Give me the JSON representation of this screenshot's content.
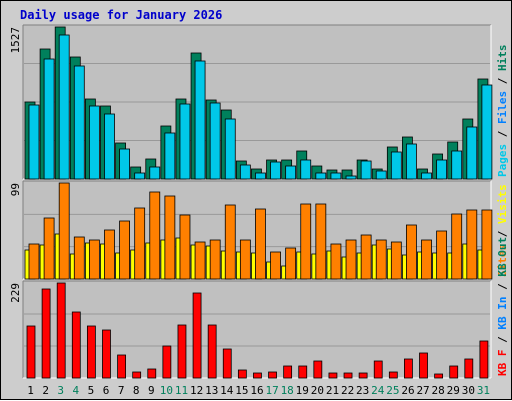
{
  "title": "Daily usage for January 2026",
  "colors": {
    "frame": "#cdcdcd",
    "plot_bg": "#c0c0c0",
    "grid": "#999999",
    "title_text": "#0000cc",
    "hits": "#00805c",
    "files": "#0080ff",
    "pages": "#00c8e8",
    "visits": "#ffff00",
    "sites": "#ff8000",
    "kb": "#ff0000",
    "weekend_day": "#00805c",
    "weekday": "#000000",
    "separator": "#000000"
  },
  "chart_data": [
    {
      "type": "bar",
      "name": "hits-files-pages",
      "ymax_label": "1527",
      "ylim": [
        0,
        1527
      ],
      "grid": true,
      "legend": [
        {
          "text": "Pages",
          "color": "#00c8e8"
        },
        {
          "text": "Files",
          "color": "#0080ff"
        },
        {
          "text": "Hits",
          "color": "#00805c"
        }
      ],
      "legend_separator": " / ",
      "x": [
        1,
        2,
        3,
        4,
        5,
        6,
        7,
        8,
        9,
        10,
        11,
        12,
        13,
        14,
        15,
        16,
        17,
        18,
        19,
        20,
        21,
        22,
        23,
        24,
        25,
        26,
        27,
        28,
        29,
        30,
        31
      ],
      "series": [
        {
          "name": "Hits",
          "color": "#00805c",
          "values": [
            770,
            1310,
            1527,
            1230,
            800,
            730,
            360,
            120,
            200,
            530,
            800,
            1265,
            790,
            690,
            180,
            100,
            190,
            190,
            280,
            130,
            90,
            90,
            190,
            100,
            320,
            420,
            100,
            250,
            370,
            600,
            1000
          ]
        },
        {
          "name": "Pages",
          "color": "#00c8e8",
          "values": [
            740,
            1210,
            1450,
            1140,
            730,
            650,
            300,
            60,
            120,
            460,
            750,
            1190,
            760,
            600,
            140,
            60,
            170,
            130,
            190,
            60,
            60,
            30,
            180,
            80,
            270,
            350,
            60,
            190,
            280,
            520,
            940
          ]
        }
      ]
    },
    {
      "type": "bar",
      "name": "visits-sites",
      "ymax_label": "99",
      "ylim": [
        0,
        99
      ],
      "grid": true,
      "legend": [
        {
          "text": "Sites",
          "color": "#ff8000"
        },
        {
          "text": "Visits",
          "color": "#ffff00"
        }
      ],
      "legend_separator": " / ",
      "x": [
        1,
        2,
        3,
        4,
        5,
        6,
        7,
        8,
        9,
        10,
        11,
        12,
        13,
        14,
        15,
        16,
        17,
        18,
        19,
        20,
        21,
        22,
        23,
        24,
        25,
        26,
        27,
        28,
        29,
        30,
        31
      ],
      "series": [
        {
          "name": "Visits",
          "color": "#ffff00",
          "values": [
            30,
            35,
            46,
            26,
            37,
            36,
            27,
            30,
            37,
            40,
            42,
            35,
            34,
            29,
            28,
            27,
            18,
            13,
            28,
            26,
            29,
            23,
            27,
            35,
            31,
            25,
            28,
            27,
            27,
            36,
            30
          ]
        },
        {
          "name": "Sites",
          "color": "#ff8000",
          "values": [
            36,
            63,
            99,
            43,
            40,
            51,
            60,
            73,
            90,
            86,
            66,
            38,
            40,
            76,
            40,
            72,
            28,
            32,
            77,
            77,
            36,
            40,
            45,
            40,
            38,
            56,
            40,
            50,
            67,
            71,
            71
          ]
        }
      ]
    },
    {
      "type": "bar",
      "name": "kbytes",
      "ymax_label": "229",
      "ylim": [
        0,
        229
      ],
      "grid": true,
      "legend": [
        {
          "text": "KB F",
          "color": "#ff0000"
        },
        {
          "text": "KB In",
          "color": "#0080ff"
        },
        {
          "text": "KB Out",
          "color": "#00805c"
        }
      ],
      "legend_separator": " / ",
      "x": [
        1,
        2,
        3,
        4,
        5,
        6,
        7,
        8,
        9,
        10,
        11,
        12,
        13,
        14,
        15,
        16,
        17,
        18,
        19,
        20,
        21,
        22,
        23,
        24,
        25,
        26,
        27,
        28,
        29,
        30,
        31
      ],
      "series": [
        {
          "name": "KB F",
          "color": "#ff0000",
          "values": [
            125,
            215,
            229,
            160,
            125,
            115,
            55,
            15,
            22,
            78,
            128,
            205,
            128,
            70,
            20,
            12,
            14,
            30,
            28,
            40,
            12,
            12,
            12,
            40,
            15,
            45,
            60,
            10,
            28,
            45,
            88
          ]
        }
      ]
    }
  ],
  "x_axis": {
    "labels": [
      "1",
      "2",
      "3",
      "4",
      "5",
      "6",
      "7",
      "8",
      "9",
      "10",
      "11",
      "12",
      "13",
      "14",
      "15",
      "16",
      "17",
      "18",
      "19",
      "20",
      "21",
      "22",
      "23",
      "24",
      "25",
      "26",
      "27",
      "28",
      "29",
      "30",
      "31"
    ],
    "weekend": [
      3,
      4,
      10,
      11,
      17,
      18,
      24,
      25,
      31
    ]
  }
}
